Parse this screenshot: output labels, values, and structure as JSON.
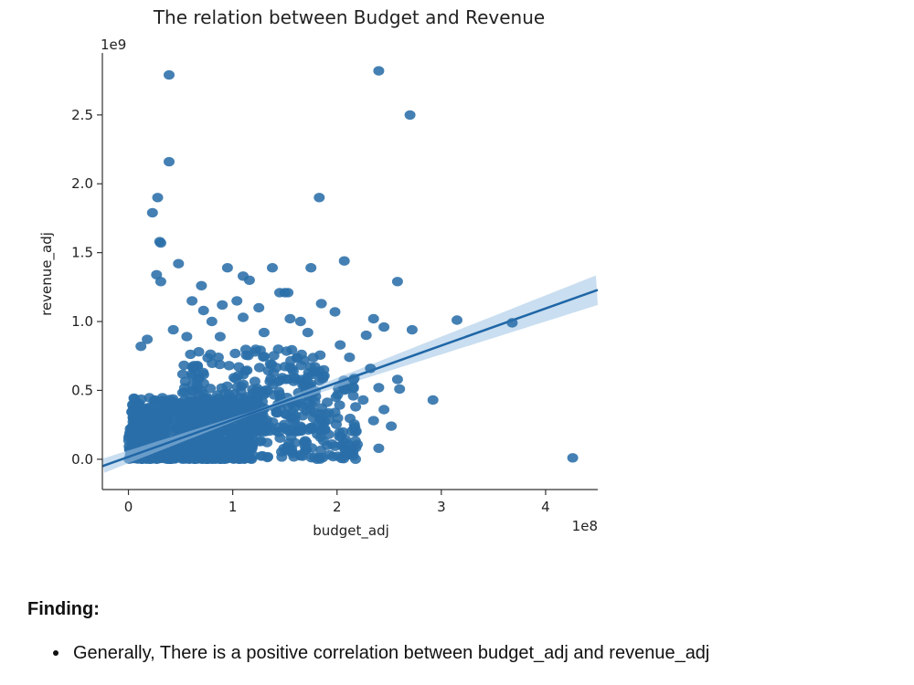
{
  "chart_data": {
    "type": "scatter",
    "title": "The relation between Budget and Revenue",
    "xlabel": "budget_adj",
    "ylabel": "revenue_adj",
    "x_offset_label": "1e8",
    "y_offset_label": "1e9",
    "xlim": [
      -25000000.0,
      450000000.0
    ],
    "ylim": [
      -220000000.0,
      2950000000.0
    ],
    "x_ticks": [
      0,
      100000000.0,
      200000000.0,
      300000000.0,
      400000000.0
    ],
    "x_tick_labels": [
      "0",
      "1",
      "2",
      "3",
      "4"
    ],
    "y_ticks": [
      0,
      500000000.0,
      1000000000.0,
      1500000000.0,
      2000000000.0,
      2500000000.0
    ],
    "y_tick_labels": [
      "0.0",
      "0.5",
      "1.0",
      "1.5",
      "2.0",
      "2.5"
    ],
    "grid": false,
    "regression_line": {
      "x": [
        -25000000.0,
        450000000.0
      ],
      "y": [
        -50000000.0,
        1230000000.0
      ]
    },
    "points": [
      {
        "x": 39000000.0,
        "y": 2790000000.0
      },
      {
        "x": 240000000.0,
        "y": 2820000000.0
      },
      {
        "x": 270000000.0,
        "y": 2500000000.0
      },
      {
        "x": 39000000.0,
        "y": 2160000000.0
      },
      {
        "x": 28000000.0,
        "y": 1900000000.0
      },
      {
        "x": 183000000.0,
        "y": 1900000000.0
      },
      {
        "x": 23000000.0,
        "y": 1790000000.0
      },
      {
        "x": 30000000.0,
        "y": 1580000000.0
      },
      {
        "x": 31000000.0,
        "y": 1570000000.0
      },
      {
        "x": 48000000.0,
        "y": 1420000000.0
      },
      {
        "x": 27000000.0,
        "y": 1340000000.0
      },
      {
        "x": 31000000.0,
        "y": 1290000000.0
      },
      {
        "x": 95000000.0,
        "y": 1390000000.0
      },
      {
        "x": 138000000.0,
        "y": 1390000000.0
      },
      {
        "x": 175000000.0,
        "y": 1390000000.0
      },
      {
        "x": 207000000.0,
        "y": 1440000000.0
      },
      {
        "x": 110000000.0,
        "y": 1330000000.0
      },
      {
        "x": 116000000.0,
        "y": 1300000000.0
      },
      {
        "x": 70000000.0,
        "y": 1260000000.0
      },
      {
        "x": 258000000.0,
        "y": 1290000000.0
      },
      {
        "x": 145000000.0,
        "y": 1210000000.0
      },
      {
        "x": 150000000.0,
        "y": 1210000000.0
      },
      {
        "x": 153000000.0,
        "y": 1210000000.0
      },
      {
        "x": 61000000.0,
        "y": 1150000000.0
      },
      {
        "x": 104000000.0,
        "y": 1150000000.0
      },
      {
        "x": 90000000.0,
        "y": 1120000000.0
      },
      {
        "x": 125000000.0,
        "y": 1100000000.0
      },
      {
        "x": 185000000.0,
        "y": 1130000000.0
      },
      {
        "x": 72000000.0,
        "y": 1080000000.0
      },
      {
        "x": 198000000.0,
        "y": 1070000000.0
      },
      {
        "x": 80000000.0,
        "y": 1000000000.0
      },
      {
        "x": 110000000.0,
        "y": 1030000000.0
      },
      {
        "x": 155000000.0,
        "y": 1020000000.0
      },
      {
        "x": 165000000.0,
        "y": 1000000000.0
      },
      {
        "x": 235000000.0,
        "y": 1020000000.0
      },
      {
        "x": 245000000.0,
        "y": 960000000.0
      },
      {
        "x": 272000000.0,
        "y": 940000000.0
      },
      {
        "x": 315000000.0,
        "y": 1010000000.0
      },
      {
        "x": 368000000.0,
        "y": 990000000.0
      },
      {
        "x": 43000000.0,
        "y": 940000000.0
      },
      {
        "x": 130000000.0,
        "y": 920000000.0
      },
      {
        "x": 172000000.0,
        "y": 920000000.0
      },
      {
        "x": 228000000.0,
        "y": 900000000.0
      },
      {
        "x": 18000000.0,
        "y": 870000000.0
      },
      {
        "x": 56000000.0,
        "y": 890000000.0
      },
      {
        "x": 88000000.0,
        "y": 890000000.0
      },
      {
        "x": 203000000.0,
        "y": 830000000.0
      },
      {
        "x": 12000000.0,
        "y": 820000000.0
      },
      {
        "x": 212000000.0,
        "y": 740000000.0
      },
      {
        "x": 232000000.0,
        "y": 660000000.0
      },
      {
        "x": 258000000.0,
        "y": 580000000.0
      },
      {
        "x": 216000000.0,
        "y": 580000000.0
      },
      {
        "x": 240000000.0,
        "y": 520000000.0
      },
      {
        "x": 260000000.0,
        "y": 510000000.0
      },
      {
        "x": 292000000.0,
        "y": 430000000.0
      },
      {
        "x": 225000000.0,
        "y": 430000000.0
      },
      {
        "x": 245000000.0,
        "y": 360000000.0
      },
      {
        "x": 198000000.0,
        "y": 340000000.0
      },
      {
        "x": 235000000.0,
        "y": 280000000.0
      },
      {
        "x": 252000000.0,
        "y": 240000000.0
      },
      {
        "x": 192000000.0,
        "y": 180000000.0
      },
      {
        "x": 208000000.0,
        "y": 120000000.0
      },
      {
        "x": 240000000.0,
        "y": 80000000.0
      },
      {
        "x": 212000000.0,
        "y": 70000000.0
      },
      {
        "x": 426000000.0,
        "y": 10000000.0
      }
    ],
    "dense_clusters": [
      {
        "x_range": [
          0,
          120000000.0
        ],
        "y_range": [
          0,
          450000000.0
        ],
        "count": 900
      },
      {
        "x_range": [
          50000000.0,
          190000000.0
        ],
        "y_range": [
          200000000.0,
          800000000.0
        ],
        "count": 260
      },
      {
        "x_range": [
          120000000.0,
          220000000.0
        ],
        "y_range": [
          0,
          600000000.0
        ],
        "count": 150
      }
    ]
  },
  "finding": {
    "heading": "Finding:",
    "bullets": [
      "Generally, There is a positive correlation between budget_adj and revenue_adj"
    ]
  }
}
